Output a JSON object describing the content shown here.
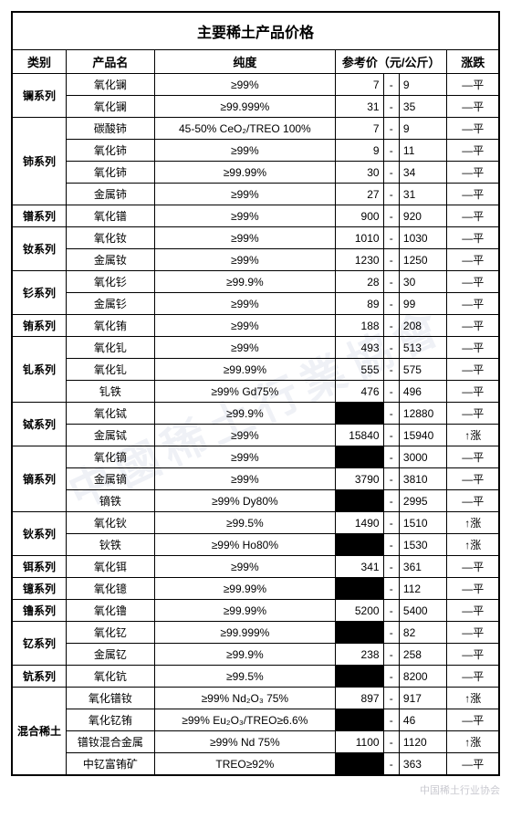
{
  "title": "主要稀土产品价格",
  "headers": {
    "category": "类别",
    "product": "产品名",
    "purity": "纯度",
    "price": "参考价（元/公斤）",
    "change": "涨跌"
  },
  "change_labels": {
    "flat": "—平",
    "up": "↑涨"
  },
  "colwidths": {
    "cat": 48,
    "prod": 78,
    "purity": 160,
    "price": 42,
    "dash": 14,
    "chg": 46
  },
  "colors": {
    "border": "#000000",
    "bg": "#ffffff",
    "redact": "#000000",
    "watermark": "rgba(120,140,180,0.12)"
  },
  "fonts": {
    "title_pt": 16,
    "header_pt": 13,
    "cell_pt": 12
  },
  "groups": [
    {
      "cat": "镧系列",
      "rows": [
        {
          "prod": "氧化镧",
          "purity": "≥99%",
          "lo": "7",
          "hi": "9",
          "chg": "flat"
        },
        {
          "prod": "氧化镧",
          "purity": "≥99.999%",
          "lo": "31",
          "hi": "35",
          "chg": "flat"
        }
      ]
    },
    {
      "cat": "铈系列",
      "rows": [
        {
          "prod": "碳酸铈",
          "purity": "45-50% CeO₂/TREO 100%",
          "lo": "7",
          "hi": "9",
          "chg": "flat"
        },
        {
          "prod": "氧化铈",
          "purity": "≥99%",
          "lo": "9",
          "hi": "11",
          "chg": "flat"
        },
        {
          "prod": "氧化铈",
          "purity": "≥99.99%",
          "lo": "30",
          "hi": "34",
          "chg": "flat"
        },
        {
          "prod": "金属铈",
          "purity": "≥99%",
          "lo": "27",
          "hi": "31",
          "chg": "flat"
        }
      ]
    },
    {
      "cat": "镨系列",
      "rows": [
        {
          "prod": "氧化镨",
          "purity": "≥99%",
          "lo": "900",
          "hi": "920",
          "chg": "flat"
        }
      ]
    },
    {
      "cat": "钕系列",
      "rows": [
        {
          "prod": "氧化钕",
          "purity": "≥99%",
          "lo": "1010",
          "hi": "1030",
          "chg": "flat"
        },
        {
          "prod": "金属钕",
          "purity": "≥99%",
          "lo": "1230",
          "hi": "1250",
          "chg": "flat"
        }
      ]
    },
    {
      "cat": "钐系列",
      "rows": [
        {
          "prod": "氧化钐",
          "purity": "≥99.9%",
          "lo": "28",
          "hi": "30",
          "chg": "flat"
        },
        {
          "prod": "金属钐",
          "purity": "≥99%",
          "lo": "89",
          "hi": "99",
          "chg": "flat"
        }
      ]
    },
    {
      "cat": "铕系列",
      "rows": [
        {
          "prod": "氧化铕",
          "purity": "≥99%",
          "lo": "188",
          "hi": "208",
          "chg": "flat"
        }
      ]
    },
    {
      "cat": "钆系列",
      "rows": [
        {
          "prod": "氧化钆",
          "purity": "≥99%",
          "lo": "493",
          "hi": "513",
          "chg": "flat"
        },
        {
          "prod": "氧化钆",
          "purity": "≥99.99%",
          "lo": "555",
          "hi": "575",
          "chg": "flat"
        },
        {
          "prod": "钆铁",
          "purity": "≥99% Gd75%",
          "lo": "476",
          "hi": "496",
          "chg": "flat"
        }
      ]
    },
    {
      "cat": "铽系列",
      "rows": [
        {
          "prod": "氧化铽",
          "purity": "≥99.9%",
          "lo": "",
          "hi": "12880",
          "chg": "flat",
          "redact_lo": true
        },
        {
          "prod": "金属铽",
          "purity": "≥99%",
          "lo": "15840",
          "hi": "15940",
          "chg": "up"
        }
      ]
    },
    {
      "cat": "镝系列",
      "rows": [
        {
          "prod": "氧化镝",
          "purity": "≥99%",
          "lo": "",
          "hi": "3000",
          "chg": "flat",
          "redact_lo": true
        },
        {
          "prod": "金属镝",
          "purity": "≥99%",
          "lo": "3790",
          "hi": "3810",
          "chg": "flat"
        },
        {
          "prod": "镝铁",
          "purity": "≥99% Dy80%",
          "lo": "",
          "hi": "2995",
          "chg": "flat",
          "redact_lo": true
        }
      ]
    },
    {
      "cat": "钬系列",
      "rows": [
        {
          "prod": "氧化钬",
          "purity": "≥99.5%",
          "lo": "1490",
          "hi": "1510",
          "chg": "up"
        },
        {
          "prod": "钬铁",
          "purity": "≥99% Ho80%",
          "lo": "",
          "hi": "1530",
          "chg": "up",
          "redact_lo": true
        }
      ]
    },
    {
      "cat": "铒系列",
      "rows": [
        {
          "prod": "氧化铒",
          "purity": "≥99%",
          "lo": "341",
          "hi": "361",
          "chg": "flat"
        }
      ]
    },
    {
      "cat": "镱系列",
      "rows": [
        {
          "prod": "氧化镱",
          "purity": "≥99.99%",
          "lo": "",
          "hi": "112",
          "chg": "flat",
          "redact_lo": true
        }
      ]
    },
    {
      "cat": "镥系列",
      "rows": [
        {
          "prod": "氧化镥",
          "purity": "≥99.99%",
          "lo": "5200",
          "hi": "5400",
          "chg": "flat"
        }
      ]
    },
    {
      "cat": "钇系列",
      "rows": [
        {
          "prod": "氧化钇",
          "purity": "≥99.999%",
          "lo": "",
          "hi": "82",
          "chg": "flat",
          "redact_lo": true
        },
        {
          "prod": "金属钇",
          "purity": "≥99.9%",
          "lo": "238",
          "hi": "258",
          "chg": "flat"
        }
      ]
    },
    {
      "cat": "钪系列",
      "rows": [
        {
          "prod": "氧化钪",
          "purity": "≥99.5%",
          "lo": "",
          "hi": "8200",
          "chg": "flat",
          "redact_lo": true
        }
      ]
    },
    {
      "cat": "混合稀土",
      "rows": [
        {
          "prod": "氧化镨钕",
          "purity": "≥99%  Nd₂O₃  75%",
          "lo": "897",
          "hi": "917",
          "chg": "up"
        },
        {
          "prod": "氧化钇铕",
          "purity": "≥99% Eu₂O₃/TREO≥6.6%",
          "lo": "",
          "hi": "46",
          "chg": "flat",
          "redact_lo": true
        },
        {
          "prod": "镨钕混合金属",
          "purity": "≥99% Nd 75%",
          "lo": "1100",
          "hi": "1120",
          "chg": "up"
        },
        {
          "prod": "中钇富铕矿",
          "purity": "TREO≥92%",
          "lo": "",
          "hi": "363",
          "chg": "flat",
          "redact_lo": true
        }
      ]
    }
  ],
  "footer": {
    "line1": "中国稀土行业协会",
    "line2": ""
  }
}
